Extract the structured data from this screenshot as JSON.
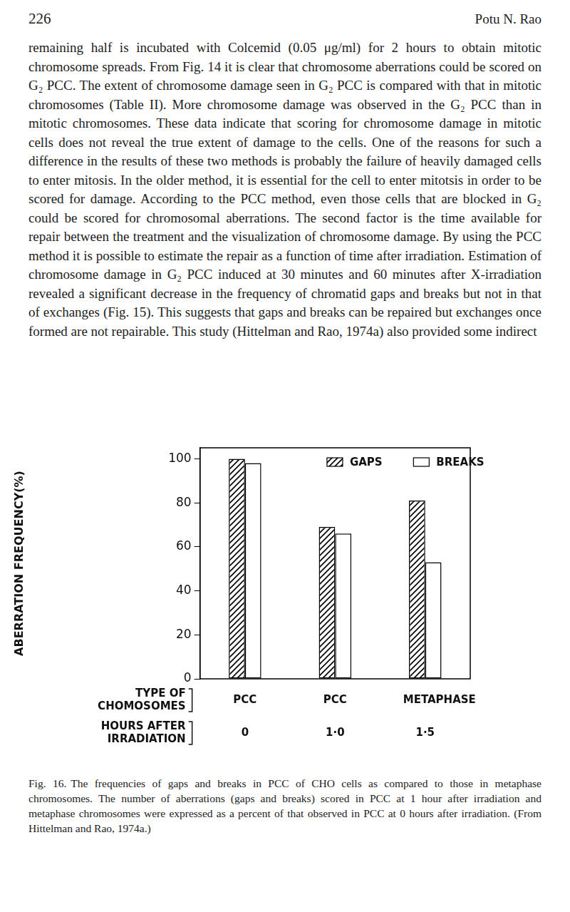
{
  "page": {
    "number": "226",
    "author": "Potu N. Rao",
    "text": "remaining half is incubated with Colcemid (0.05 μg/ml) for 2 hours to obtain mitotic chromosome spreads. From Fig. 14 it is clear that chromosome aberrations could be scored on G₂ PCC. The extent of chromosome damage seen in G₂ PCC is compared with that in mitotic chromosomes (Table II). More chromosome damage was observed in the G₂ PCC than in mitotic chromosomes. These data indicate that scoring for chromosome damage in mitotic cells does not reveal the true extent of damage to the cells. One of the reasons for such a difference in the results of these two methods is probably the failure of heavily damaged cells to enter mitosis. In the older method, it is essential for the cell to enter mitotsis in order to be scored for damage. According to the PCC method, even those cells that are blocked in G₂ could be scored for chromosomal aberrations. The second factor is the time available for repair between the treatment and the visualization of chromosome damage. By using the PCC method it is possible to estimate the repair as a function of time after irradiation. Estimation of chromosome damage in G₂ PCC induced at 30 minutes and 60 minutes after X-irradiation revealed a significant decrease in the frequency of chromatid gaps and breaks but not in that of exchanges (Fig. 15). This suggests that gaps and breaks can be repaired but exchanges once formed are not repairable. This study (Hittelman and Rao, 1974a) also provided some indirect",
    "caption": {
      "label": "Fig. 16.",
      "text": "The frequencies of gaps and breaks in PCC of CHO cells as compared to those in metaphase chromosomes. The number of aberrations (gaps and breaks) scored in PCC at 1 hour after irradiation and metaphase chromosomes were expressed as a percent of that observed in PCC at 0 hours after irradiation. (From Hittelman and Rao, 1974a.)"
    }
  },
  "chart_data": {
    "type": "bar",
    "y_label": "ABERRATION FREQUENCY(%)",
    "categories": [
      "PCC",
      "PCC",
      "METAPHASE"
    ],
    "hours": [
      "0",
      "1·0",
      "1·5"
    ],
    "row_labels": [
      [
        "TYPE OF",
        "CHOMOSOMES"
      ],
      [
        "HOURS AFTER",
        "IRRADIATION"
      ]
    ],
    "series": [
      {
        "name": "GAPS",
        "color": "#000000",
        "marker": "hatch",
        "values": [
          100,
          69,
          81
        ]
      },
      {
        "name": "BREAKS",
        "color": "#ffffff",
        "values": [
          98,
          66,
          53
        ]
      }
    ],
    "ylim": [
      0,
      105
    ],
    "yticks": [
      0,
      20,
      40,
      60,
      80,
      100
    ],
    "grid": false,
    "legend": "top"
  }
}
